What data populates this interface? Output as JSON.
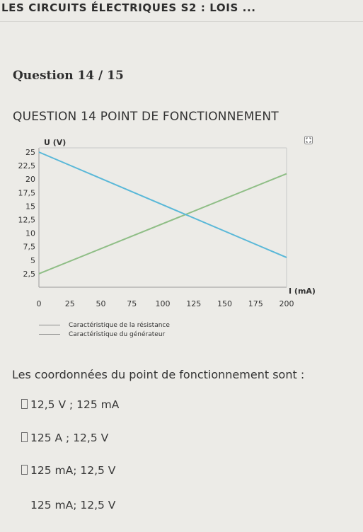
{
  "header": {
    "title": "LES CIRCUITS ÉLECTRIQUES S2 : LOIS ..."
  },
  "question": {
    "number": "Question 14 / 15",
    "title": "QUESTION 14 POINT DE FONCTIONNEMENT",
    "prompt": "Les coordonnées du point de fonctionnement sont :"
  },
  "options": [
    {
      "label": "12,5 V ; 125 mA",
      "checkbox_visible": true
    },
    {
      "label": "125 A ; 12,5 V",
      "checkbox_visible": true
    },
    {
      "label": "125 mA; 12,5 V",
      "checkbox_visible": true
    },
    {
      "label": "125 mA; 12,5 V",
      "checkbox_visible": false
    }
  ],
  "icons": {
    "expand": "expand-icon"
  },
  "chart_data": {
    "type": "line",
    "xlabel": "I (mA)",
    "ylabel": "U (V)",
    "xlim": [
      0,
      200
    ],
    "ylim": [
      0,
      25
    ],
    "x_ticks": [
      "0",
      "25",
      "50",
      "75",
      "100",
      "125",
      "150",
      "175",
      "200"
    ],
    "y_ticks": [
      "2,5",
      "5",
      "7,5",
      "10",
      "12,5",
      "15",
      "17,5",
      "20",
      "22,5",
      "25"
    ],
    "grid": false,
    "series": [
      {
        "name": "Caractéristique de la résistance",
        "color": "#8fbe86",
        "points": [
          [
            0,
            2.5
          ],
          [
            200,
            21
          ]
        ]
      },
      {
        "name": "Caractéristique du générateur",
        "color": "#5ab8d8",
        "points": [
          [
            0,
            25
          ],
          [
            200,
            5.5
          ]
        ]
      }
    ]
  }
}
